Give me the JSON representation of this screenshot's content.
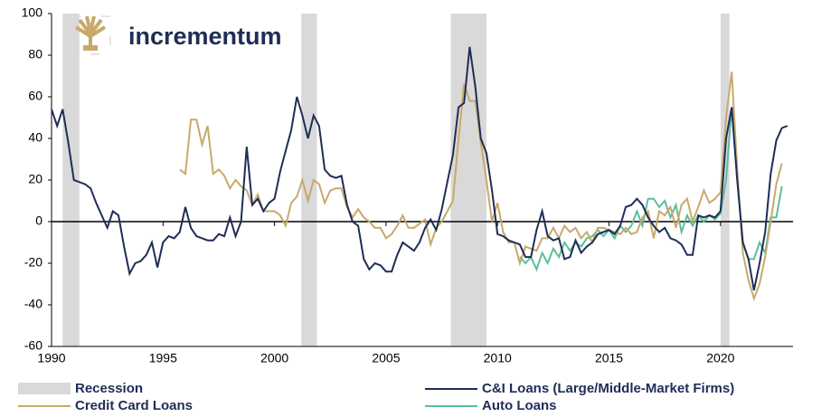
{
  "chart_data": {
    "type": "line",
    "logo_text": "incrementum",
    "xlim": [
      1990,
      2023.25
    ],
    "xticks": [
      1990,
      1995,
      2000,
      2005,
      2010,
      2015,
      2020
    ],
    "ylim": [
      -60,
      100
    ],
    "yticks": [
      -60,
      -40,
      -20,
      0,
      20,
      40,
      60,
      80,
      100
    ],
    "recession": {
      "name": "Recession",
      "color": "#d9d9d9",
      "spans": [
        [
          1990.5,
          1991.25
        ],
        [
          2001.2,
          2001.9
        ],
        [
          2007.9,
          2009.5
        ],
        [
          2020.0,
          2020.4
        ]
      ]
    },
    "series": [
      {
        "name": "C&I Loans (Large/Middle-Market Firms)",
        "color": "#1f2d56",
        "x": [
          1990,
          1990.25,
          1990.5,
          1990.75,
          1991,
          1991.5,
          1991.75,
          1992,
          1992.25,
          1992.5,
          1992.75,
          1993,
          1993.25,
          1993.5,
          1993.75,
          1994,
          1994.25,
          1994.5,
          1994.75,
          1995,
          1995.25,
          1995.5,
          1995.75,
          1996,
          1996.25,
          1996.5,
          1996.75,
          1997,
          1997.25,
          1997.5,
          1997.75,
          1998,
          1998.25,
          1998.5,
          1998.75,
          1999,
          1999.25,
          1999.5,
          1999.75,
          2000,
          2000.25,
          2000.5,
          2000.75,
          2001,
          2001.25,
          2001.5,
          2001.75,
          2002,
          2002.25,
          2002.5,
          2002.75,
          2003,
          2003.25,
          2003.5,
          2003.75,
          2004,
          2004.25,
          2004.5,
          2004.75,
          2005,
          2005.25,
          2005.5,
          2005.75,
          2006,
          2006.25,
          2006.5,
          2006.75,
          2007,
          2007.25,
          2007.5,
          2007.75,
          2008,
          2008.25,
          2008.5,
          2008.75,
          2009,
          2009.25,
          2009.5,
          2009.75,
          2010,
          2010.25,
          2010.5,
          2010.75,
          2011,
          2011.25,
          2011.5,
          2011.75,
          2012,
          2012.25,
          2012.5,
          2012.75,
          2013,
          2013.25,
          2013.5,
          2013.75,
          2014,
          2014.25,
          2014.5,
          2014.75,
          2015,
          2015.25,
          2015.5,
          2015.75,
          2016,
          2016.25,
          2016.5,
          2016.75,
          2017,
          2017.25,
          2017.5,
          2017.75,
          2018,
          2018.25,
          2018.5,
          2018.75,
          2019,
          2019.25,
          2019.5,
          2019.75,
          2020,
          2020.25,
          2020.5,
          2020.75,
          2021,
          2021.25,
          2021.5,
          2021.75,
          2022,
          2022.25,
          2022.5,
          2022.75,
          2023
        ],
        "values": [
          54,
          46,
          54,
          38,
          20,
          18,
          16,
          9,
          3,
          -3,
          5,
          3,
          -12,
          -25,
          -20,
          -19,
          -16,
          -10,
          -22,
          -10,
          -7,
          -8,
          -5,
          7,
          -3,
          -7,
          -8,
          -9,
          -9,
          -6,
          -7,
          2,
          -7,
          0,
          36,
          8,
          11,
          5,
          9,
          11,
          24,
          34,
          44,
          60,
          51,
          40,
          51,
          46,
          25,
          22,
          21,
          22,
          8,
          0,
          -2,
          -18,
          -23,
          -20,
          -21,
          -24,
          -24,
          -16,
          -10,
          -12,
          -14,
          -10,
          -3,
          1,
          -4,
          6,
          19,
          32,
          55,
          57,
          84,
          65,
          40,
          33,
          15,
          -6,
          -7,
          -9,
          -10,
          -11,
          -17,
          -17,
          -4,
          5,
          -7,
          -9,
          -8,
          -18,
          -17,
          -9,
          -15,
          -12,
          -10,
          -6,
          -5,
          -4,
          -6,
          -2,
          7,
          8,
          11,
          8,
          2,
          -2,
          -5,
          -3,
          -8,
          -9,
          -11,
          -16,
          -16,
          3,
          2,
          3,
          2,
          5,
          40,
          55,
          20,
          -10,
          -18,
          -33,
          -20,
          -5,
          23,
          39,
          45,
          46
        ]
      },
      {
        "name": "Credit Card Loans",
        "color": "#c8a96a",
        "x": [
          1995.75,
          1996,
          1996.25,
          1996.5,
          1996.75,
          1997,
          1997.25,
          1997.5,
          1997.75,
          1998,
          1998.25,
          1998.5,
          1998.75,
          1999,
          1999.25,
          1999.5,
          1999.75,
          2000,
          2000.25,
          2000.5,
          2000.75,
          2001,
          2001.25,
          2001.5,
          2001.75,
          2002,
          2002.25,
          2002.5,
          2002.75,
          2003,
          2003.25,
          2003.5,
          2003.75,
          2004,
          2004.25,
          2004.5,
          2004.75,
          2005,
          2005.25,
          2005.5,
          2005.75,
          2006,
          2006.25,
          2006.5,
          2006.75,
          2007,
          2007.25,
          2007.5,
          2007.75,
          2008,
          2008.25,
          2008.5,
          2008.75,
          2009,
          2009.25,
          2009.5,
          2009.75,
          2010,
          2010.25,
          2010.5,
          2010.75,
          2011,
          2011.25,
          2011.5,
          2011.75,
          2012,
          2012.25,
          2012.5,
          2012.75,
          2013,
          2013.25,
          2013.5,
          2013.75,
          2014,
          2014.25,
          2014.5,
          2014.75,
          2015,
          2015.25,
          2015.5,
          2015.75,
          2016,
          2016.25,
          2016.5,
          2016.75,
          2017,
          2017.25,
          2017.5,
          2017.75,
          2018,
          2018.25,
          2018.5,
          2018.75,
          2019,
          2019.25,
          2019.5,
          2019.75,
          2020,
          2020.25,
          2020.5,
          2020.75,
          2021,
          2021.25,
          2021.5,
          2021.75,
          2022,
          2022.25,
          2022.5,
          2022.75
        ],
        "values": [
          25,
          23,
          49,
          49,
          37,
          46,
          23,
          25,
          22,
          16,
          20,
          17,
          15,
          8,
          13,
          5,
          5,
          5,
          3,
          -2,
          9,
          12,
          20,
          10,
          20,
          18,
          9,
          15,
          16,
          16,
          7,
          2,
          6,
          2,
          0,
          -3,
          -3,
          -8,
          -6,
          -2,
          3,
          -3,
          -3,
          -1,
          1,
          -11,
          -3,
          0,
          5,
          10,
          40,
          66,
          58,
          58,
          38,
          20,
          0,
          9,
          -5,
          -10,
          -10,
          -20,
          -12,
          -13,
          -14,
          -8,
          -8,
          -3,
          -8,
          -2,
          -5,
          -3,
          -8,
          -5,
          -10,
          -3,
          -3,
          -4,
          -5,
          -6,
          -3,
          -6,
          -5,
          2,
          5,
          -8,
          5,
          3,
          7,
          -3,
          8,
          11,
          0,
          7,
          15,
          9,
          11,
          14,
          50,
          72,
          25,
          -15,
          -28,
          -37,
          -30,
          -17,
          0,
          18,
          28
        ]
      },
      {
        "name": "Auto Loans",
        "color": "#5bbf9c",
        "x": [
          2011,
          2011.25,
          2011.5,
          2011.75,
          2012,
          2012.25,
          2012.5,
          2012.75,
          2013,
          2013.25,
          2013.5,
          2013.75,
          2014,
          2014.25,
          2014.5,
          2014.75,
          2015,
          2015.25,
          2015.5,
          2015.75,
          2016,
          2016.25,
          2016.5,
          2016.75,
          2017,
          2017.25,
          2017.5,
          2017.75,
          2018,
          2018.25,
          2018.5,
          2018.75,
          2019,
          2019.25,
          2019.5,
          2019.75,
          2020,
          2020.25,
          2020.5,
          2020.75,
          2021,
          2021.25,
          2021.5,
          2021.75,
          2022,
          2022.25,
          2022.5,
          2022.75
        ],
        "values": [
          -17,
          -20,
          -17,
          -23,
          -15,
          -20,
          -13,
          -17,
          -10,
          -14,
          -10,
          -12,
          -8,
          -7,
          -4,
          -7,
          -4,
          -8,
          -2,
          -5,
          -2,
          5,
          -2,
          11,
          11,
          7,
          10,
          2,
          8,
          -5,
          3,
          -2,
          3,
          0,
          3,
          1,
          4,
          20,
          55,
          20,
          -10,
          -18,
          -18,
          -10,
          -15,
          2,
          2,
          17
        ]
      }
    ]
  }
}
